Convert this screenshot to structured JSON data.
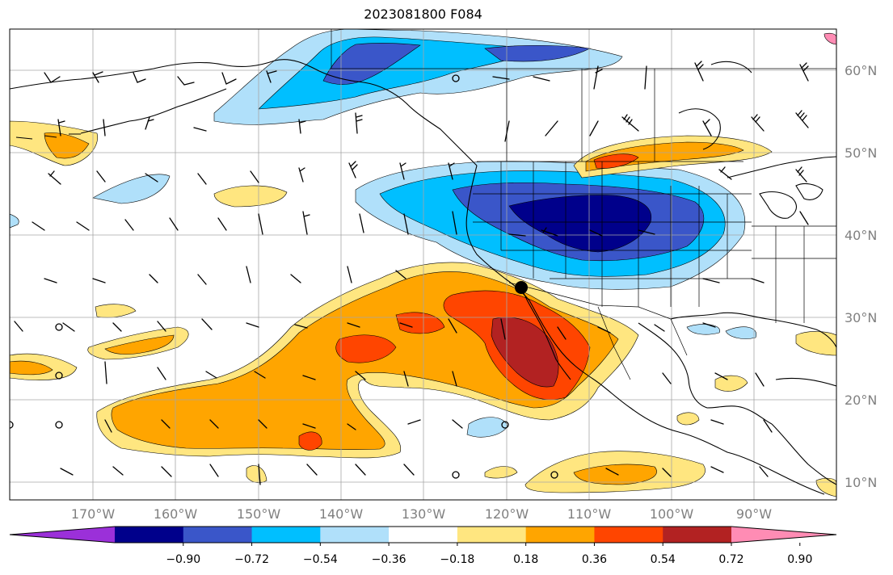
{
  "title": "2023081800 F084",
  "map": {
    "lat_labels": [
      "60°N",
      "50°N",
      "40°N",
      "30°N",
      "20°N",
      "10°N"
    ],
    "lon_labels": [
      "170°W",
      "160°W",
      "150°W",
      "140°W",
      "130°W",
      "120°W",
      "110°W",
      "100°W",
      "90°W"
    ],
    "projection": "lat-lon",
    "lon_range": [
      -180,
      -80
    ],
    "lat_range": [
      8,
      65
    ],
    "gridlines": true,
    "fields": [
      "shaded anomaly field",
      "wind barbs",
      "coastlines and political borders"
    ],
    "marker": {
      "lon": -118.2,
      "lat": 34.1,
      "shape": "filled black circle"
    }
  },
  "colorbar": {
    "ticks": [
      "−0.90",
      "−0.72",
      "−0.54",
      "−0.36",
      "−0.18",
      "0.18",
      "0.36",
      "0.54",
      "0.72",
      "0.90"
    ],
    "colors": [
      "#9b30d9",
      "#00008b",
      "#3a56c9",
      "#00bfff",
      "#b0e0fa",
      "#ffffff",
      "#ffe680",
      "#ffa500",
      "#ff4500",
      "#b22222",
      "#ff8cb4"
    ],
    "extend": "both"
  }
}
